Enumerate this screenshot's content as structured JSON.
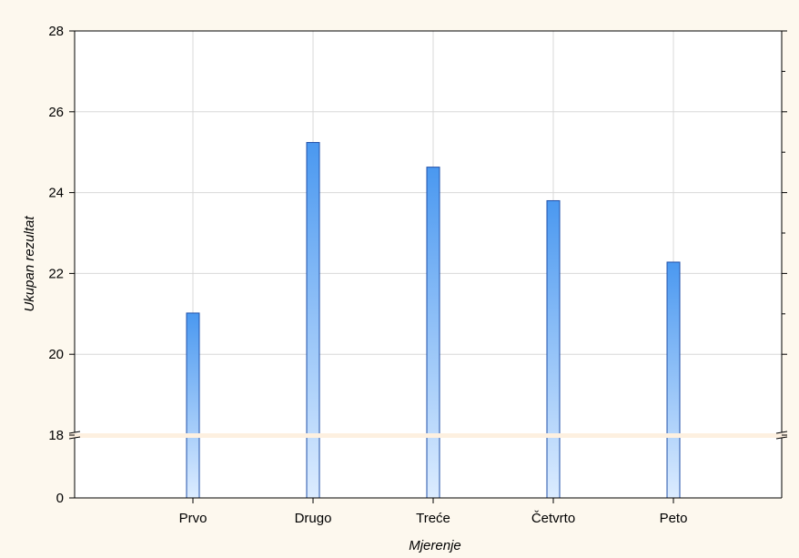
{
  "chart_data": {
    "type": "bar",
    "title": "",
    "xlabel": "Mjerenje",
    "ylabel": "Ukupan rezultat",
    "categories": [
      "Prvo",
      "Drugo",
      "Treće",
      "Četvrto",
      "Peto"
    ],
    "values": [
      21.02,
      25.24,
      24.63,
      23.8,
      22.28
    ],
    "ylim": [
      18,
      28
    ],
    "y_axis_break": {
      "lower_label": 0,
      "upper_start": 18
    },
    "yticks": [
      0,
      18,
      20,
      22,
      24,
      26,
      28
    ],
    "grid": true,
    "legend": "none",
    "colors": {
      "bar_top": "#4a98f0",
      "bar_bottom": "#dcecff",
      "bar_edge": "#1f4fa8",
      "grid": "#d8d8d8",
      "plot_bg": "#ffffff",
      "page_bg": "#fdf8ee",
      "break_band": "#fdf0e0"
    }
  }
}
